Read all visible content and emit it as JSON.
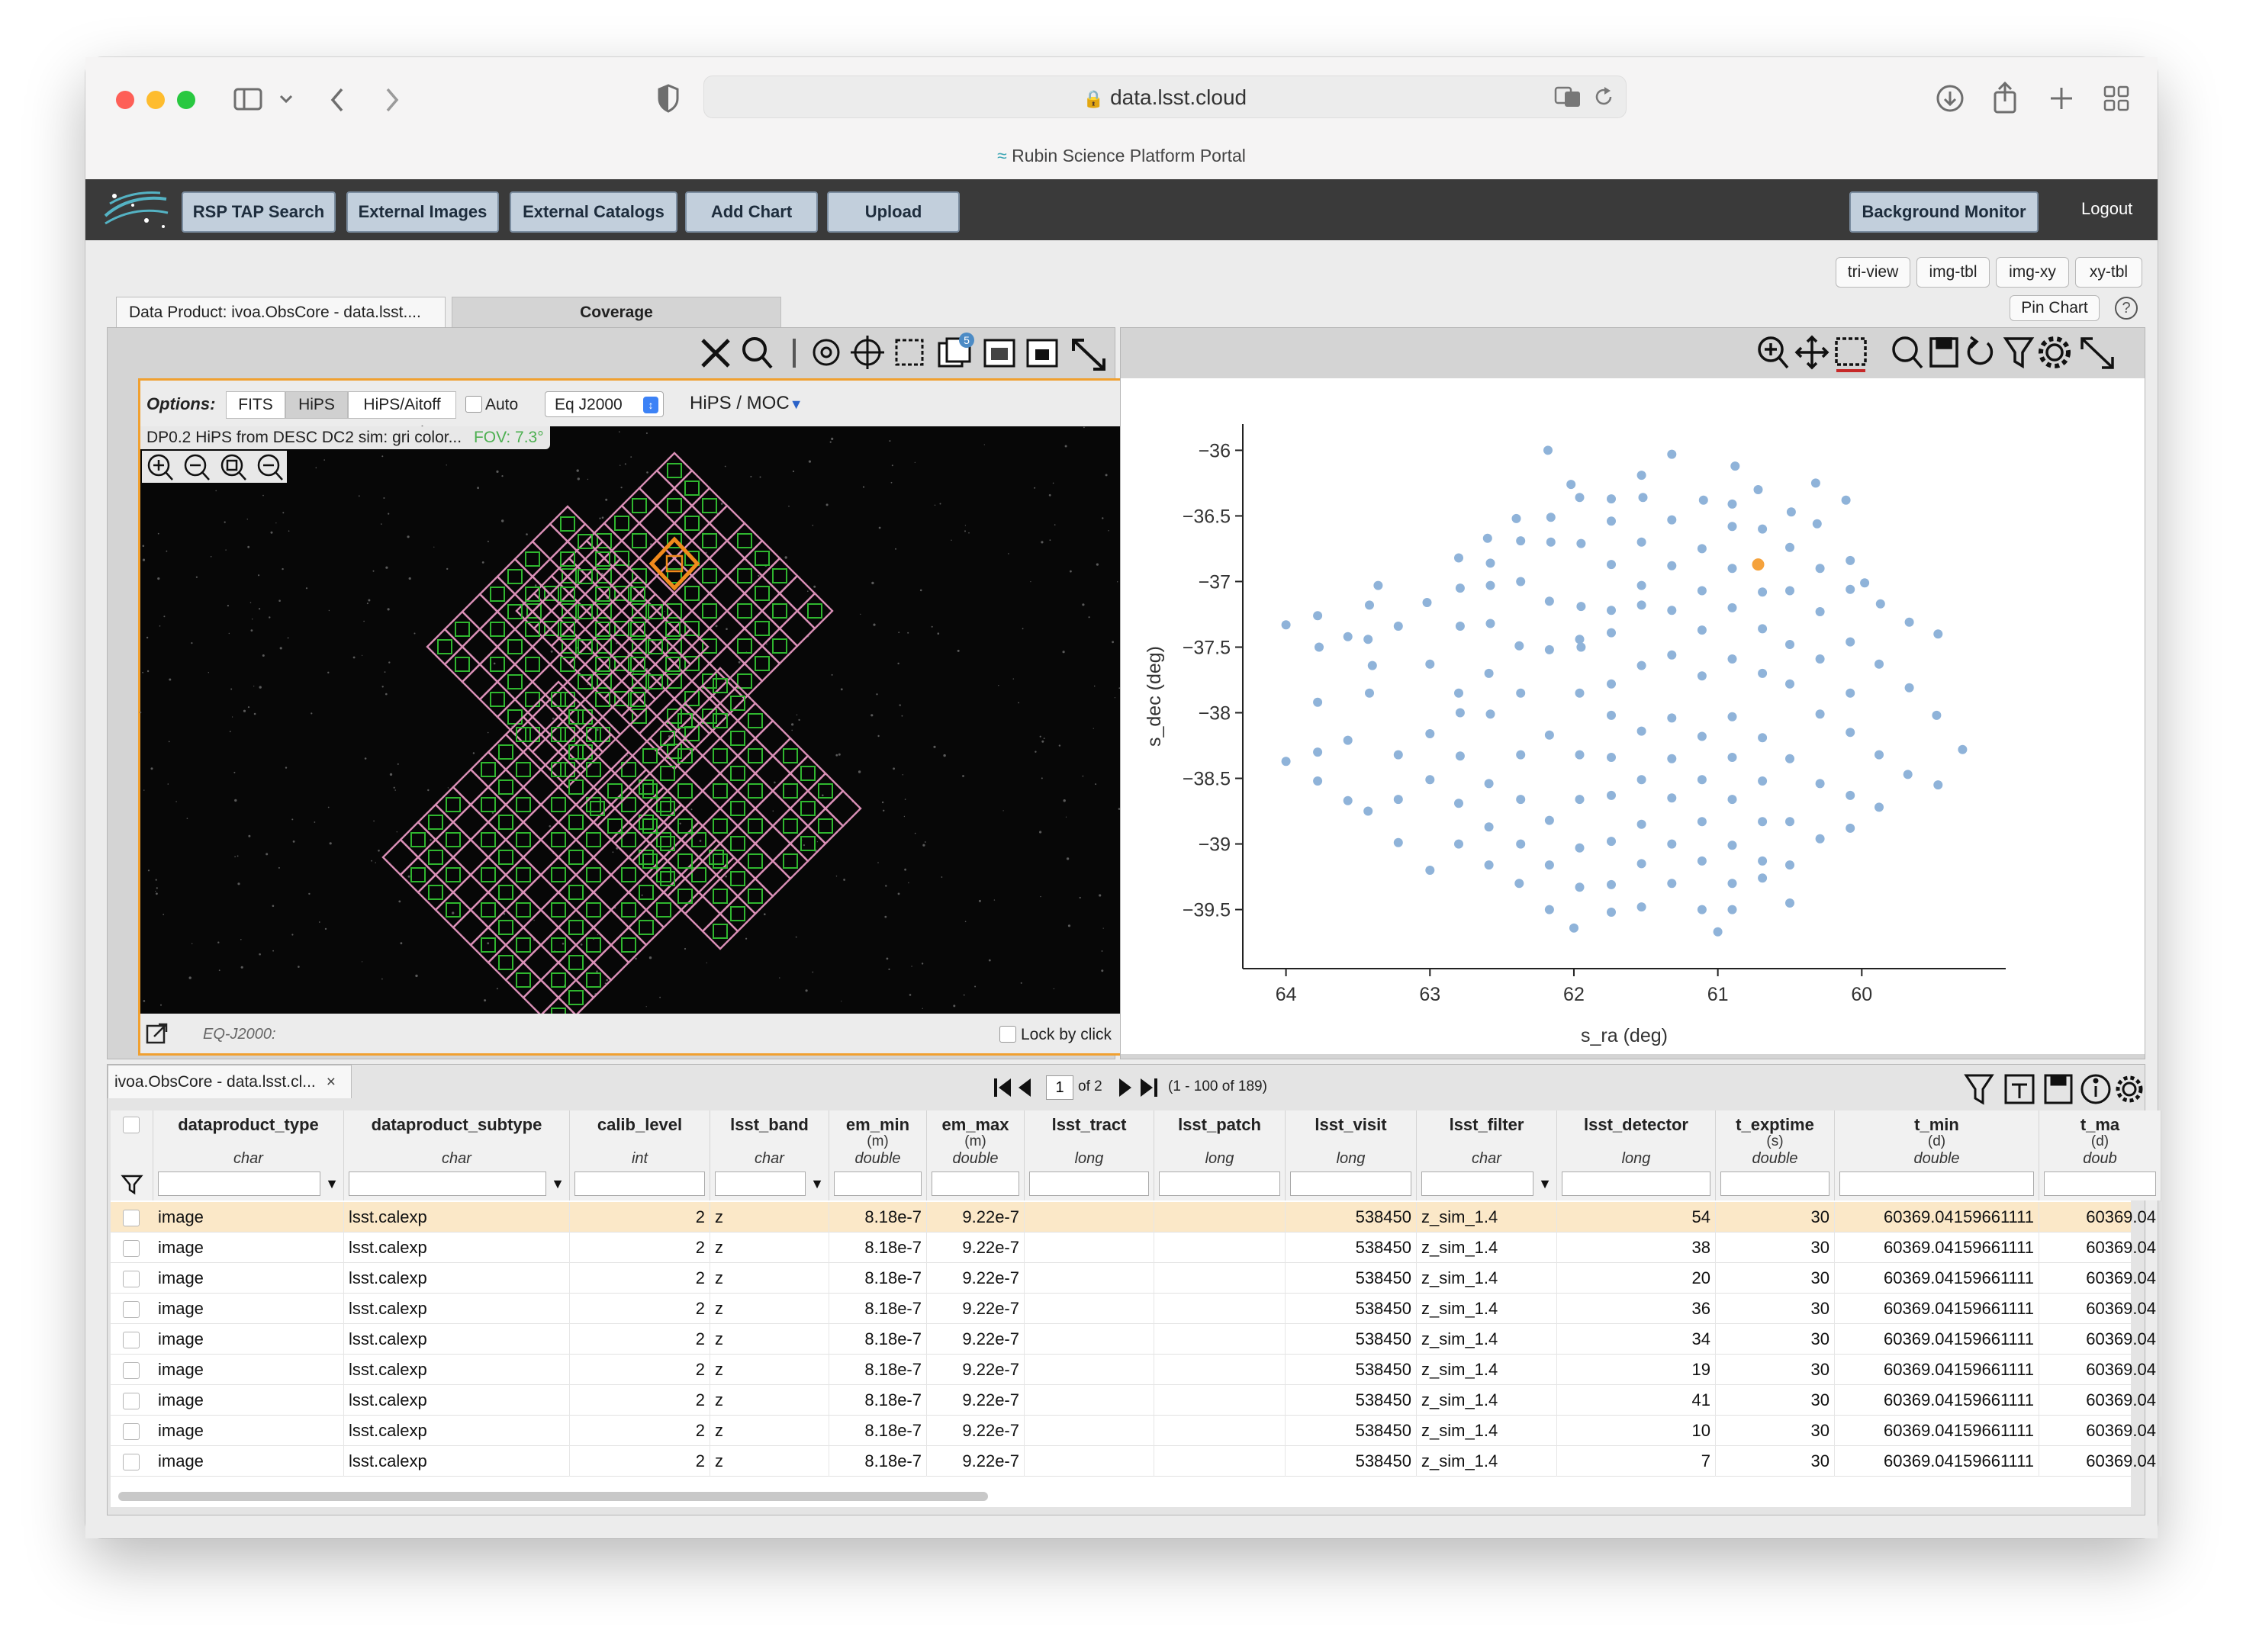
{
  "browser": {
    "url": "data.lsst.cloud",
    "page_title": "Rubin Science Platform Portal",
    "icons": [
      "sidebar-icon",
      "chevron-down-icon",
      "back-icon",
      "forward-icon",
      "shield-icon",
      "lock-icon",
      "translate-icon",
      "reload-icon",
      "download-icon",
      "share-icon",
      "new-tab-icon",
      "tab-overview-icon"
    ]
  },
  "topbar": {
    "buttons": [
      "RSP TAP Search",
      "External Images",
      "External Catalogs",
      "Add Chart",
      "Upload"
    ],
    "background_monitor": "Background Monitor",
    "logout": "Logout"
  },
  "layout_buttons": [
    "tri-view",
    "img-tbl",
    "img-xy",
    "xy-tbl"
  ],
  "pin_chart": "Pin Chart",
  "help": "?",
  "image_panel": {
    "tabs": [
      "Data Product: ivoa.ObsCore - data.lsst....",
      "Coverage"
    ],
    "active_tab": "Coverage",
    "options_label": "Options:",
    "options": [
      "FITS",
      "HiPS",
      "HiPS/Aitoff"
    ],
    "selected_option": "HiPS",
    "auto_label": "Auto",
    "coord_system": "Eq J2000",
    "hips_moc": "HiPS / MOC",
    "hips_title": "DP0.2 HiPS from DESC DC2 sim: gri color...",
    "fov": "FOV: 7.3°",
    "footer_coord": "EQ-J2000:",
    "lock_by_click": "Lock by click",
    "layer_count": "5"
  },
  "chart": {
    "toolbar_icons": [
      "zoom-in-icon",
      "pan-icon",
      "select-icon",
      "zoom-1x-icon",
      "save-icon",
      "restore-icon",
      "filter-icon",
      "settings-icon",
      "expand-icon"
    ],
    "chart_data": {
      "type": "scatter",
      "xlabel": "s_ra (deg)",
      "ylabel": "s_dec (deg)",
      "xlim": [
        64.3,
        59.0
      ],
      "ylim": [
        -39.95,
        -35.8
      ],
      "x_ticks": [
        "64",
        "63",
        "62",
        "61",
        "60"
      ],
      "y_ticks": [
        "−36",
        "−36.5",
        "−37",
        "−37.5",
        "−38",
        "−38.5",
        "−39",
        "−39.5"
      ],
      "highlight": [
        60.72,
        -36.87
      ],
      "series": [
        {
          "color": "#8fb3d9",
          "points": [
            [
              61.32,
              -36.03
            ],
            [
              60.88,
              -36.12
            ],
            [
              62.18,
              -36.0
            ],
            [
              60.72,
              -36.3
            ],
            [
              60.32,
              -36.25
            ],
            [
              61.53,
              -36.19
            ],
            [
              62.02,
              -36.26
            ],
            [
              60.11,
              -36.38
            ],
            [
              61.96,
              -36.36
            ],
            [
              61.74,
              -36.37
            ],
            [
              61.52,
              -36.36
            ],
            [
              61.1,
              -36.38
            ],
            [
              60.9,
              -36.41
            ],
            [
              60.49,
              -36.47
            ],
            [
              62.16,
              -36.51
            ],
            [
              62.4,
              -36.52
            ],
            [
              61.74,
              -36.54
            ],
            [
              61.32,
              -36.53
            ],
            [
              60.9,
              -36.58
            ],
            [
              60.31,
              -36.56
            ],
            [
              60.69,
              -36.6
            ],
            [
              62.6,
              -36.67
            ],
            [
              62.37,
              -36.69
            ],
            [
              62.16,
              -36.7
            ],
            [
              61.95,
              -36.71
            ],
            [
              61.53,
              -36.7
            ],
            [
              61.11,
              -36.75
            ],
            [
              60.5,
              -36.74
            ],
            [
              60.08,
              -36.84
            ],
            [
              62.8,
              -36.82
            ],
            [
              62.58,
              -36.86
            ],
            [
              61.74,
              -36.87
            ],
            [
              61.32,
              -36.88
            ],
            [
              60.9,
              -36.9
            ],
            [
              60.29,
              -36.9
            ],
            [
              59.98,
              -37.01
            ],
            [
              63.36,
              -37.03
            ],
            [
              62.37,
              -37.0
            ],
            [
              61.53,
              -37.03
            ],
            [
              61.11,
              -37.07
            ],
            [
              60.69,
              -37.08
            ],
            [
              60.5,
              -37.07
            ],
            [
              60.08,
              -37.06
            ],
            [
              62.79,
              -37.05
            ],
            [
              62.58,
              -37.03
            ],
            [
              63.42,
              -37.18
            ],
            [
              62.17,
              -37.15
            ],
            [
              61.95,
              -37.19
            ],
            [
              61.74,
              -37.22
            ],
            [
              61.53,
              -37.18
            ],
            [
              61.32,
              -37.22
            ],
            [
              60.9,
              -37.2
            ],
            [
              60.29,
              -37.23
            ],
            [
              59.87,
              -37.17
            ],
            [
              63.02,
              -37.16
            ],
            [
              64.0,
              -37.33
            ],
            [
              63.78,
              -37.26
            ],
            [
              63.22,
              -37.34
            ],
            [
              62.79,
              -37.34
            ],
            [
              62.58,
              -37.32
            ],
            [
              61.11,
              -37.37
            ],
            [
              60.69,
              -37.36
            ],
            [
              59.67,
              -37.31
            ],
            [
              63.57,
              -37.42
            ],
            [
              63.43,
              -37.44
            ],
            [
              61.96,
              -37.44
            ],
            [
              61.74,
              -37.39
            ],
            [
              60.5,
              -37.48
            ],
            [
              60.08,
              -37.46
            ],
            [
              59.47,
              -37.4
            ],
            [
              63.77,
              -37.5
            ],
            [
              62.38,
              -37.49
            ],
            [
              62.17,
              -37.52
            ],
            [
              61.95,
              -37.5
            ],
            [
              61.32,
              -37.56
            ],
            [
              60.9,
              -37.59
            ],
            [
              60.29,
              -37.59
            ],
            [
              59.88,
              -37.63
            ],
            [
              63.4,
              -37.64
            ],
            [
              63.0,
              -37.63
            ],
            [
              62.59,
              -37.7
            ],
            [
              61.53,
              -37.64
            ],
            [
              61.11,
              -37.72
            ],
            [
              60.69,
              -37.7
            ],
            [
              63.42,
              -37.85
            ],
            [
              62.8,
              -37.85
            ],
            [
              62.37,
              -37.85
            ],
            [
              61.96,
              -37.85
            ],
            [
              61.74,
              -37.78
            ],
            [
              60.5,
              -37.78
            ],
            [
              60.08,
              -37.85
            ],
            [
              59.67,
              -37.81
            ],
            [
              63.78,
              -37.92
            ],
            [
              62.79,
              -38.0
            ],
            [
              62.58,
              -38.01
            ],
            [
              61.74,
              -38.02
            ],
            [
              61.32,
              -38.04
            ],
            [
              60.9,
              -38.03
            ],
            [
              60.29,
              -38.01
            ],
            [
              59.48,
              -38.02
            ],
            [
              63.0,
              -38.16
            ],
            [
              62.17,
              -38.17
            ],
            [
              61.53,
              -38.14
            ],
            [
              61.11,
              -38.18
            ],
            [
              60.69,
              -38.19
            ],
            [
              60.08,
              -38.15
            ],
            [
              63.57,
              -38.21
            ],
            [
              64.0,
              -38.37
            ],
            [
              63.78,
              -38.3
            ],
            [
              63.22,
              -38.32
            ],
            [
              62.79,
              -38.33
            ],
            [
              62.37,
              -38.32
            ],
            [
              61.96,
              -38.32
            ],
            [
              61.74,
              -38.34
            ],
            [
              61.32,
              -38.35
            ],
            [
              60.9,
              -38.34
            ],
            [
              60.5,
              -38.35
            ],
            [
              59.88,
              -38.32
            ],
            [
              59.3,
              -38.28
            ],
            [
              63.78,
              -38.52
            ],
            [
              63.0,
              -38.51
            ],
            [
              62.59,
              -38.54
            ],
            [
              61.53,
              -38.51
            ],
            [
              61.11,
              -38.51
            ],
            [
              60.69,
              -38.52
            ],
            [
              60.29,
              -38.54
            ],
            [
              59.68,
              -38.47
            ],
            [
              63.57,
              -38.67
            ],
            [
              63.22,
              -38.66
            ],
            [
              62.8,
              -38.69
            ],
            [
              62.37,
              -38.66
            ],
            [
              61.96,
              -38.66
            ],
            [
              61.74,
              -38.63
            ],
            [
              61.32,
              -38.65
            ],
            [
              60.9,
              -38.66
            ],
            [
              60.08,
              -38.63
            ],
            [
              59.47,
              -38.55
            ],
            [
              63.43,
              -38.75
            ],
            [
              62.59,
              -38.87
            ],
            [
              62.17,
              -38.82
            ],
            [
              61.53,
              -38.85
            ],
            [
              61.11,
              -38.83
            ],
            [
              60.69,
              -38.83
            ],
            [
              60.5,
              -38.83
            ],
            [
              59.88,
              -38.72
            ],
            [
              63.22,
              -38.99
            ],
            [
              62.8,
              -39.0
            ],
            [
              62.37,
              -39.0
            ],
            [
              61.96,
              -39.03
            ],
            [
              61.74,
              -38.98
            ],
            [
              61.32,
              -39.0
            ],
            [
              60.9,
              -39.01
            ],
            [
              60.29,
              -38.96
            ],
            [
              60.08,
              -38.88
            ],
            [
              62.59,
              -39.16
            ],
            [
              62.17,
              -39.16
            ],
            [
              61.53,
              -39.15
            ],
            [
              61.11,
              -39.13
            ],
            [
              60.69,
              -39.13
            ],
            [
              60.5,
              -39.16
            ],
            [
              63.0,
              -39.2
            ],
            [
              62.38,
              -39.3
            ],
            [
              61.96,
              -39.33
            ],
            [
              61.74,
              -39.31
            ],
            [
              61.32,
              -39.3
            ],
            [
              60.9,
              -39.3
            ],
            [
              60.69,
              -39.26
            ],
            [
              62.17,
              -39.5
            ],
            [
              61.74,
              -39.52
            ],
            [
              61.11,
              -39.5
            ],
            [
              60.9,
              -39.5
            ],
            [
              61.53,
              -39.48
            ],
            [
              62.0,
              -39.64
            ],
            [
              61.0,
              -39.67
            ],
            [
              60.5,
              -39.45
            ]
          ]
        }
      ]
    }
  },
  "table": {
    "tab_title": "ivoa.ObsCore - data.lsst.cl...",
    "page_input": "1",
    "page_of": "of 2",
    "range": "(1 - 100 of 189)",
    "columns": [
      {
        "name": "dataproduct_type",
        "unit": "",
        "type": "char"
      },
      {
        "name": "dataproduct_subtype",
        "unit": "",
        "type": "char"
      },
      {
        "name": "calib_level",
        "unit": "",
        "type": "int"
      },
      {
        "name": "lsst_band",
        "unit": "",
        "type": "char"
      },
      {
        "name": "em_min",
        "unit": "(m)",
        "type": "double"
      },
      {
        "name": "em_max",
        "unit": "(m)",
        "type": "double"
      },
      {
        "name": "lsst_tract",
        "unit": "",
        "type": "long"
      },
      {
        "name": "lsst_patch",
        "unit": "",
        "type": "long"
      },
      {
        "name": "lsst_visit",
        "unit": "",
        "type": "long"
      },
      {
        "name": "lsst_filter",
        "unit": "",
        "type": "char"
      },
      {
        "name": "lsst_detector",
        "unit": "",
        "type": "long"
      },
      {
        "name": "t_exptime",
        "unit": "(s)",
        "type": "double"
      },
      {
        "name": "t_min",
        "unit": "(d)",
        "type": "double"
      },
      {
        "name": "t_ma",
        "unit": "(d)",
        "type": "doub"
      }
    ],
    "rows": [
      [
        "image",
        "lsst.calexp",
        "2",
        "z",
        "8.18e-7",
        "9.22e-7",
        "",
        "",
        "538450",
        "z_sim_1.4",
        "54",
        "30",
        "60369.04159661111",
        "60369.04"
      ],
      [
        "image",
        "lsst.calexp",
        "2",
        "z",
        "8.18e-7",
        "9.22e-7",
        "",
        "",
        "538450",
        "z_sim_1.4",
        "38",
        "30",
        "60369.04159661111",
        "60369.04"
      ],
      [
        "image",
        "lsst.calexp",
        "2",
        "z",
        "8.18e-7",
        "9.22e-7",
        "",
        "",
        "538450",
        "z_sim_1.4",
        "20",
        "30",
        "60369.04159661111",
        "60369.04"
      ],
      [
        "image",
        "lsst.calexp",
        "2",
        "z",
        "8.18e-7",
        "9.22e-7",
        "",
        "",
        "538450",
        "z_sim_1.4",
        "36",
        "30",
        "60369.04159661111",
        "60369.04"
      ],
      [
        "image",
        "lsst.calexp",
        "2",
        "z",
        "8.18e-7",
        "9.22e-7",
        "",
        "",
        "538450",
        "z_sim_1.4",
        "34",
        "30",
        "60369.04159661111",
        "60369.04"
      ],
      [
        "image",
        "lsst.calexp",
        "2",
        "z",
        "8.18e-7",
        "9.22e-7",
        "",
        "",
        "538450",
        "z_sim_1.4",
        "19",
        "30",
        "60369.04159661111",
        "60369.04"
      ],
      [
        "image",
        "lsst.calexp",
        "2",
        "z",
        "8.18e-7",
        "9.22e-7",
        "",
        "",
        "538450",
        "z_sim_1.4",
        "41",
        "30",
        "60369.04159661111",
        "60369.04"
      ],
      [
        "image",
        "lsst.calexp",
        "2",
        "z",
        "8.18e-7",
        "9.22e-7",
        "",
        "",
        "538450",
        "z_sim_1.4",
        "10",
        "30",
        "60369.04159661111",
        "60369.04"
      ],
      [
        "image",
        "lsst.calexp",
        "2",
        "z",
        "8.18e-7",
        "9.22e-7",
        "",
        "",
        "538450",
        "z_sim_1.4",
        "7",
        "30",
        "60369.04159661111",
        "60369.04"
      ]
    ]
  }
}
